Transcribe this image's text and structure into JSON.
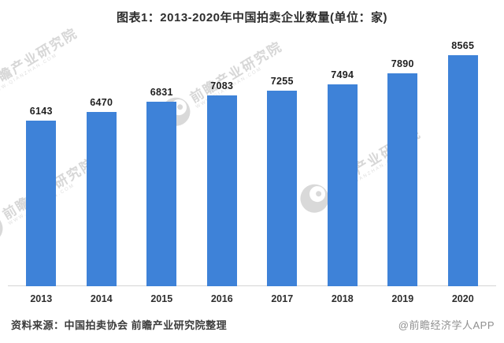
{
  "title": "图表1：2013-2020年中国拍卖企业数量(单位：家)",
  "chart_data": {
    "type": "bar",
    "title": "图表1：2013-2020年中国拍卖企业数量(单位：家)",
    "categories": [
      "2013",
      "2014",
      "2015",
      "2016",
      "2017",
      "2018",
      "2019",
      "2020"
    ],
    "values": [
      6143,
      6470,
      6831,
      7083,
      7255,
      7494,
      7890,
      8565
    ],
    "xlabel": "",
    "ylabel": "",
    "ylim": [
      0,
      8565
    ],
    "grid": false,
    "legend": null,
    "bar_color": "#3e82d8",
    "axis_line_color": "#d4d4d4"
  },
  "footer": {
    "source": "资料来源：中国拍卖协会 前瞻产业研究院整理",
    "credit": "@前瞻经济学人APP"
  },
  "watermark": {
    "text": "前瞻产业研究院",
    "subtext": "WWW.QIANZHAN.COM",
    "color": "#d7d7d7"
  }
}
